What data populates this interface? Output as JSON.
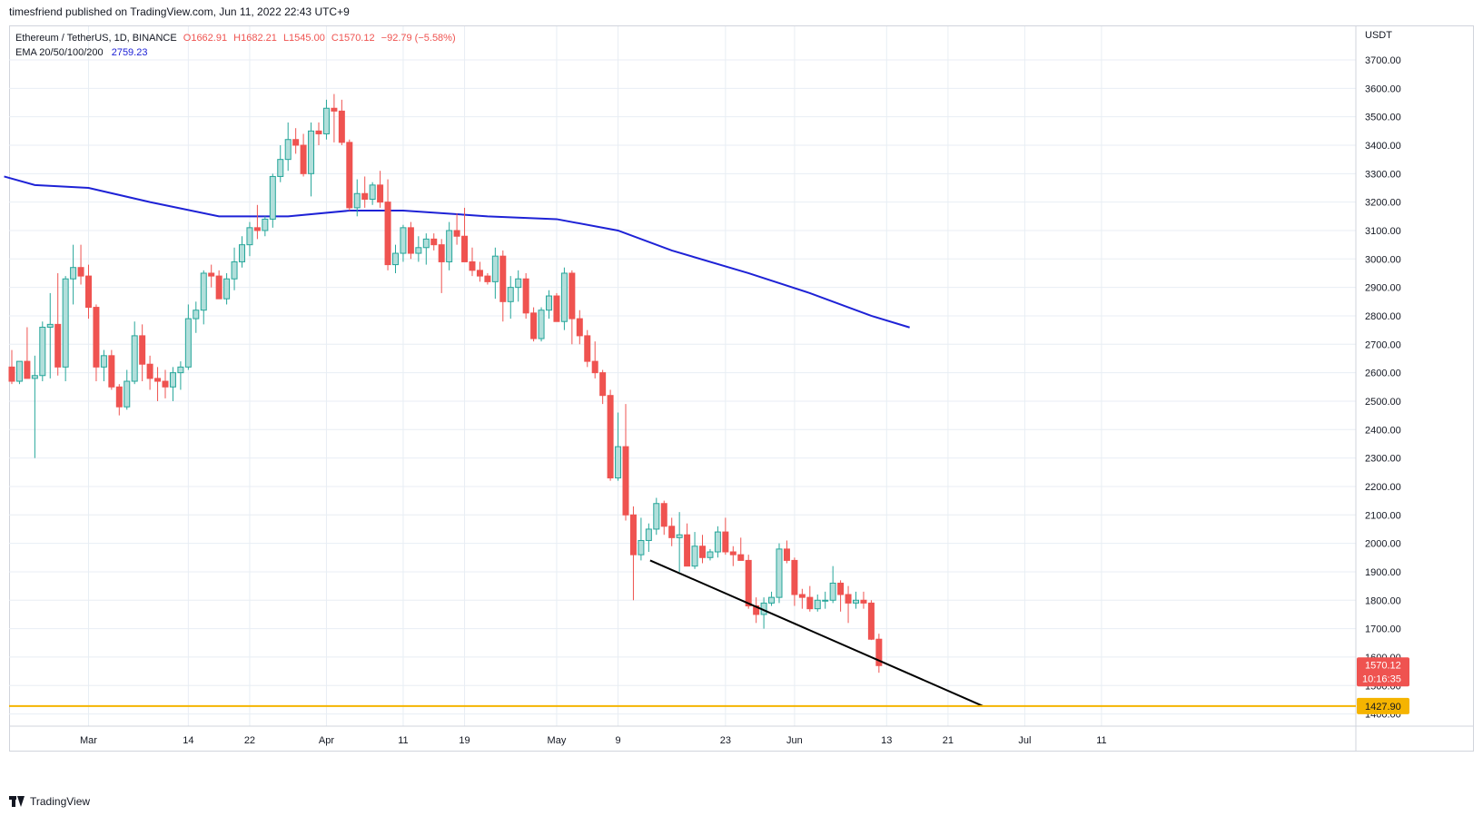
{
  "header": {
    "publisher_line": "timesfriend published on TradingView.com, Jun 11, 2022 22:43 UTC+9"
  },
  "legend": {
    "symbol": "Ethereum / TetherUS, 1D, BINANCE",
    "open": "O1662.91",
    "high": "H1682.21",
    "low": "L1545.00",
    "close": "C1570.12",
    "change": "−92.79 (−5.58%)",
    "ema_label": "EMA 20/50/100/200",
    "ema_value": "2759.23"
  },
  "footer": {
    "brand": "TradingView"
  },
  "chart_data": {
    "type": "candlestick",
    "currency": "USDT",
    "ylim": [
      1360,
      3760
    ],
    "y_ticks": [
      1400,
      1500,
      1600,
      1700,
      1800,
      1900,
      2000,
      2100,
      2200,
      2300,
      2400,
      2500,
      2600,
      2700,
      2800,
      2900,
      3000,
      3100,
      3200,
      3300,
      3400,
      3500,
      3600,
      3700
    ],
    "x_labels": [
      {
        "text": "Mar",
        "bar": 10
      },
      {
        "text": "14",
        "bar": 23
      },
      {
        "text": "22",
        "bar": 31
      },
      {
        "text": "Apr",
        "bar": 41
      },
      {
        "text": "11",
        "bar": 51
      },
      {
        "text": "19",
        "bar": 59
      },
      {
        "text": "May",
        "bar": 71
      },
      {
        "text": "9",
        "bar": 79
      },
      {
        "text": "23",
        "bar": 93
      },
      {
        "text": "Jun",
        "bar": 102
      },
      {
        "text": "13",
        "bar": 114
      },
      {
        "text": "21",
        "bar": 122
      },
      {
        "text": "Jul",
        "bar": 132
      },
      {
        "text": "11",
        "bar": 142
      }
    ],
    "candles": [
      [
        2620,
        2680,
        2560,
        2570
      ],
      [
        2570,
        2640,
        2560,
        2640
      ],
      [
        2640,
        2760,
        2590,
        2580
      ],
      [
        2580,
        2660,
        2300,
        2590
      ],
      [
        2590,
        2780,
        2570,
        2760
      ],
      [
        2760,
        2880,
        2580,
        2770
      ],
      [
        2770,
        2950,
        2590,
        2620
      ],
      [
        2620,
        2940,
        2570,
        2930
      ],
      [
        2930,
        3050,
        2840,
        2970
      ],
      [
        2970,
        3050,
        2910,
        2940
      ],
      [
        2940,
        2980,
        2790,
        2830
      ],
      [
        2830,
        2840,
        2570,
        2620
      ],
      [
        2620,
        2680,
        2570,
        2660
      ],
      [
        2660,
        2680,
        2540,
        2550
      ],
      [
        2550,
        2560,
        2450,
        2480
      ],
      [
        2480,
        2610,
        2470,
        2570
      ],
      [
        2570,
        2780,
        2560,
        2730
      ],
      [
        2730,
        2770,
        2570,
        2630
      ],
      [
        2630,
        2660,
        2540,
        2580
      ],
      [
        2580,
        2620,
        2500,
        2570
      ],
      [
        2570,
        2610,
        2510,
        2550
      ],
      [
        2550,
        2620,
        2500,
        2600
      ],
      [
        2600,
        2640,
        2540,
        2620
      ],
      [
        2620,
        2840,
        2610,
        2790
      ],
      [
        2790,
        2850,
        2740,
        2820
      ],
      [
        2820,
        2960,
        2770,
        2950
      ],
      [
        2950,
        2980,
        2900,
        2940
      ],
      [
        2940,
        2960,
        2870,
        2860
      ],
      [
        2860,
        2950,
        2840,
        2930
      ],
      [
        2930,
        3040,
        2890,
        2990
      ],
      [
        2990,
        3080,
        2970,
        3050
      ],
      [
        3050,
        3130,
        3010,
        3110
      ],
      [
        3110,
        3190,
        3070,
        3100
      ],
      [
        3100,
        3150,
        3080,
        3140
      ],
      [
        3140,
        3300,
        3110,
        3290
      ],
      [
        3290,
        3400,
        3270,
        3350
      ],
      [
        3350,
        3480,
        3310,
        3420
      ],
      [
        3420,
        3460,
        3370,
        3400
      ],
      [
        3400,
        3440,
        3290,
        3300
      ],
      [
        3300,
        3480,
        3220,
        3450
      ],
      [
        3450,
        3480,
        3400,
        3440
      ],
      [
        3440,
        3560,
        3420,
        3530
      ],
      [
        3530,
        3580,
        3410,
        3520
      ],
      [
        3520,
        3560,
        3400,
        3410
      ],
      [
        3410,
        3420,
        3170,
        3180
      ],
      [
        3180,
        3280,
        3150,
        3230
      ],
      [
        3230,
        3290,
        3180,
        3210
      ],
      [
        3210,
        3270,
        3190,
        3260
      ],
      [
        3260,
        3310,
        3180,
        3200
      ],
      [
        3200,
        3280,
        2960,
        2980
      ],
      [
        2980,
        3050,
        2950,
        3020
      ],
      [
        3020,
        3120,
        2990,
        3110
      ],
      [
        3110,
        3130,
        3000,
        3020
      ],
      [
        3020,
        3080,
        2990,
        3040
      ],
      [
        3040,
        3090,
        2980,
        3070
      ],
      [
        3070,
        3090,
        3030,
        3050
      ],
      [
        3050,
        3070,
        2880,
        2990
      ],
      [
        2990,
        3130,
        2960,
        3100
      ],
      [
        3100,
        3160,
        3050,
        3080
      ],
      [
        3080,
        3180,
        2990,
        2990
      ],
      [
        2990,
        3040,
        2940,
        2960
      ],
      [
        2960,
        2990,
        2920,
        2940
      ],
      [
        2940,
        2950,
        2910,
        2920
      ],
      [
        2920,
        3040,
        2860,
        3010
      ],
      [
        3010,
        3030,
        2780,
        2850
      ],
      [
        2850,
        2940,
        2790,
        2900
      ],
      [
        2900,
        2960,
        2850,
        2930
      ],
      [
        2930,
        2950,
        2790,
        2810
      ],
      [
        2810,
        2830,
        2710,
        2720
      ],
      [
        2720,
        2830,
        2710,
        2820
      ],
      [
        2820,
        2890,
        2790,
        2870
      ],
      [
        2870,
        2880,
        2800,
        2780
      ],
      [
        2780,
        2970,
        2750,
        2950
      ],
      [
        2950,
        2960,
        2700,
        2790
      ],
      [
        2790,
        2820,
        2700,
        2730
      ],
      [
        2730,
        2750,
        2620,
        2640
      ],
      [
        2640,
        2710,
        2580,
        2600
      ],
      [
        2600,
        2610,
        2490,
        2520
      ],
      [
        2520,
        2540,
        2220,
        2230
      ],
      [
        2230,
        2460,
        2220,
        2340
      ],
      [
        2340,
        2490,
        2080,
        2100
      ],
      [
        2100,
        2130,
        1800,
        1960
      ],
      [
        1960,
        2090,
        1940,
        2010
      ],
      [
        2010,
        2070,
        1970,
        2050
      ],
      [
        2050,
        2160,
        2030,
        2140
      ],
      [
        2140,
        2150,
        2030,
        2060
      ],
      [
        2060,
        2090,
        1990,
        2020
      ],
      [
        2020,
        2110,
        1900,
        2030
      ],
      [
        2030,
        2070,
        1920,
        1920
      ],
      [
        1920,
        2040,
        1910,
        1990
      ],
      [
        1990,
        2030,
        1930,
        1950
      ],
      [
        1950,
        1980,
        1940,
        1970
      ],
      [
        1970,
        2060,
        1950,
        2040
      ],
      [
        2040,
        2090,
        1960,
        1970
      ],
      [
        1970,
        1990,
        1920,
        1960
      ],
      [
        1960,
        2020,
        1940,
        1940
      ],
      [
        1940,
        1960,
        1770,
        1780
      ],
      [
        1780,
        1810,
        1720,
        1750
      ],
      [
        1750,
        1810,
        1700,
        1790
      ],
      [
        1790,
        1830,
        1780,
        1810
      ],
      [
        1810,
        2000,
        1790,
        1980
      ],
      [
        1980,
        2010,
        1930,
        1940
      ],
      [
        1940,
        1950,
        1780,
        1820
      ],
      [
        1820,
        1840,
        1770,
        1810
      ],
      [
        1810,
        1850,
        1760,
        1770
      ],
      [
        1770,
        1820,
        1760,
        1800
      ],
      [
        1800,
        1830,
        1770,
        1800
      ],
      [
        1800,
        1920,
        1790,
        1860
      ],
      [
        1860,
        1870,
        1760,
        1820
      ],
      [
        1820,
        1850,
        1720,
        1790
      ],
      [
        1790,
        1830,
        1770,
        1800
      ],
      [
        1800,
        1830,
        1770,
        1790
      ],
      [
        1790,
        1800,
        1660,
        1662.91
      ],
      [
        1662.91,
        1682.21,
        1545,
        1570.12
      ]
    ],
    "ema200": [
      [
        -1,
        3290
      ],
      [
        3,
        3260
      ],
      [
        10,
        3250
      ],
      [
        18,
        3200
      ],
      [
        27,
        3150
      ],
      [
        36,
        3150
      ],
      [
        44,
        3170
      ],
      [
        51,
        3170
      ],
      [
        62,
        3150
      ],
      [
        71,
        3140
      ],
      [
        79,
        3100
      ],
      [
        86,
        3030
      ],
      [
        96,
        2950
      ],
      [
        104,
        2880
      ],
      [
        112,
        2800
      ],
      [
        117,
        2759.23
      ]
    ],
    "trendline": [
      [
        -1,
        0
      ],
      [
        82,
        1940
      ],
      [
        127,
        1460
      ]
    ],
    "horizontal_level": 1427.9,
    "current_price": "1570.12",
    "countdown": "10:16:35",
    "level_label": "1427.90",
    "colors": {
      "up": "#26a69a",
      "up_fill": "#b2dfdb",
      "down": "#ef5350",
      "ema": "#1e22d6",
      "level": "#f5b400",
      "trendline": "#000000",
      "grid": "#e8eef4"
    }
  }
}
